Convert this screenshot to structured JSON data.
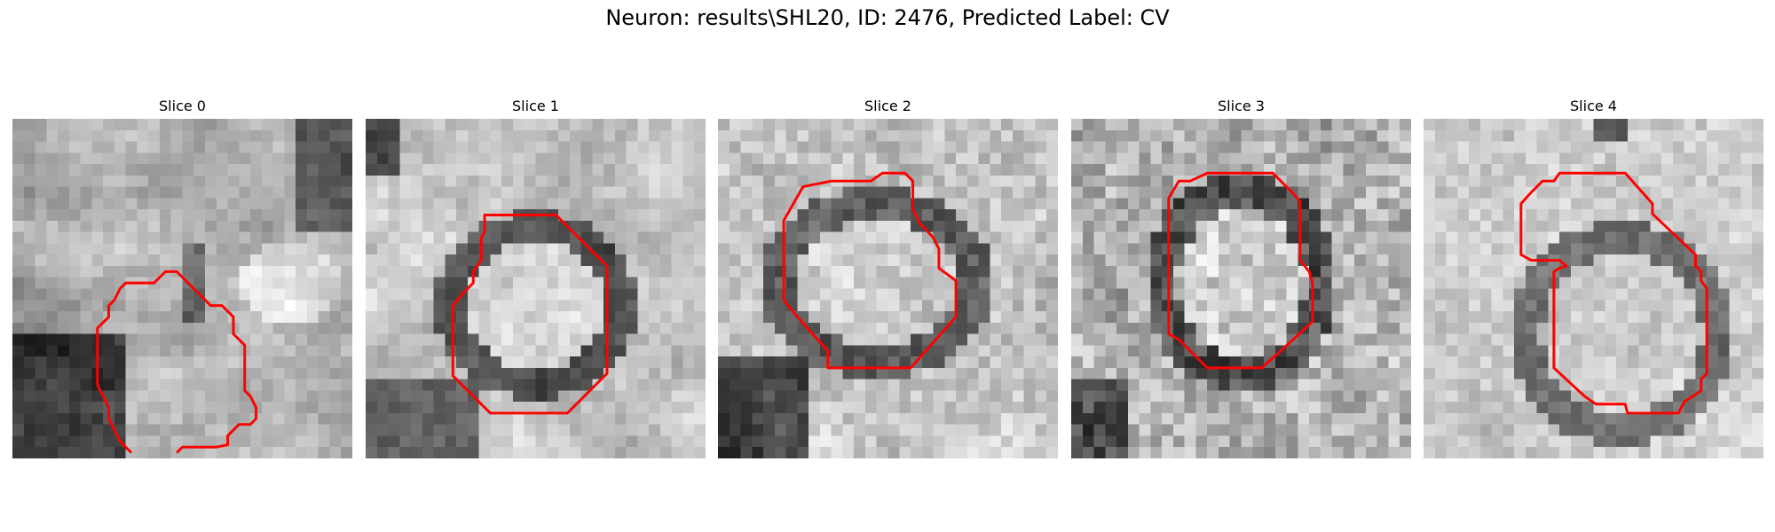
{
  "figure": {
    "title": "Neuron: results\\SHL20, ID: 2476, Predicted Label: CV"
  },
  "panels": [
    {
      "title": "Slice 0"
    },
    {
      "title": "Slice 1"
    },
    {
      "title": "Slice 2"
    },
    {
      "title": "Slice 3"
    },
    {
      "title": "Slice 4"
    }
  ],
  "colors": {
    "contour": "#ff0000",
    "background": "#ffffff"
  }
}
